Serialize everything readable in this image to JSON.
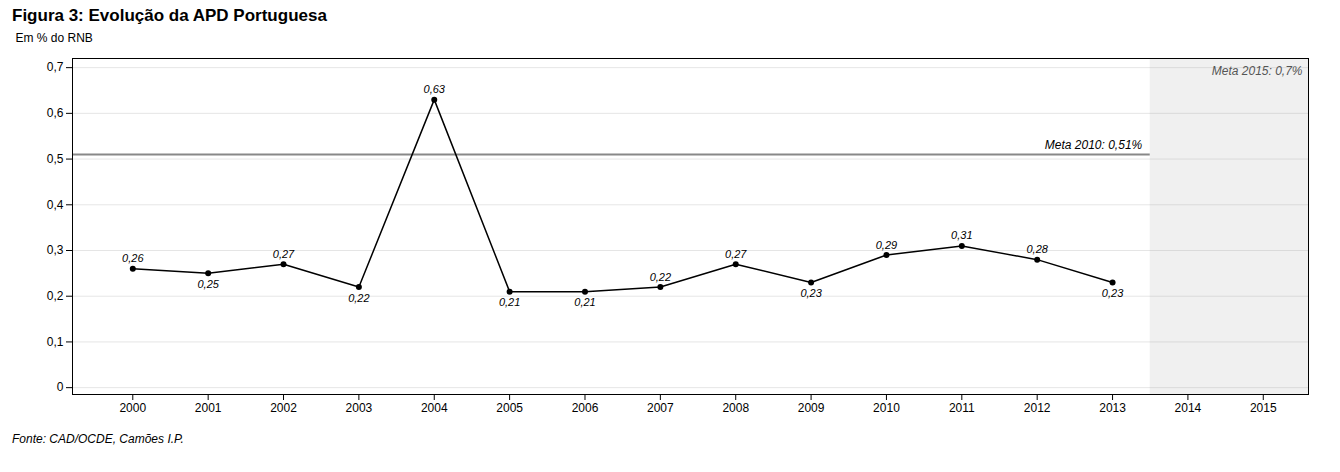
{
  "chart_data": {
    "type": "line",
    "title": "Figura 3: Evolução da APD Portuguesa",
    "source": "Fonte: CAD/OCDE, Camões I.P.",
    "y_label": "Em % do RNB",
    "x": [
      2000,
      2001,
      2002,
      2003,
      2004,
      2005,
      2006,
      2007,
      2008,
      2009,
      2010,
      2011,
      2012,
      2013
    ],
    "values": [
      0.26,
      0.25,
      0.27,
      0.22,
      0.63,
      0.21,
      0.21,
      0.22,
      0.27,
      0.23,
      0.29,
      0.31,
      0.28,
      0.23
    ],
    "value_labels": [
      "0,26",
      "0,25",
      "0,27",
      "0,22",
      "0,63",
      "0,21",
      "0,21",
      "0,22",
      "0,27",
      "0,23",
      "0,29",
      "0,31",
      "0,28",
      "0,23"
    ],
    "data_labels": true,
    "marker": "circle",
    "line_style": "solid",
    "grid": true,
    "xlim": [
      1999.2,
      2015.6
    ],
    "xticks": [
      2000,
      2001,
      2002,
      2003,
      2004,
      2005,
      2006,
      2007,
      2008,
      2009,
      2010,
      2011,
      2012,
      2013,
      2014,
      2015
    ],
    "ylim": [
      -0.015,
      0.72
    ],
    "yticks": [
      0,
      {
        "value": 0.1,
        "label": "0,1"
      },
      {
        "value": 0.2,
        "label": "0,2"
      },
      {
        "value": 0.3,
        "label": "0,3"
      },
      {
        "value": 0.4,
        "label": "0,4"
      },
      {
        "value": 0.5,
        "label": "0,5"
      },
      {
        "value": 0.6,
        "label": "0,6"
      },
      {
        "value": 0.7,
        "label": "0,7"
      }
    ],
    "annotations": [
      {
        "text": "Meta 2010: 0,51%",
        "y": 0.51
      },
      {
        "text": "Meta 2015: 0,7%"
      }
    ],
    "span": [
      2013.5,
      2015.6
    ]
  }
}
